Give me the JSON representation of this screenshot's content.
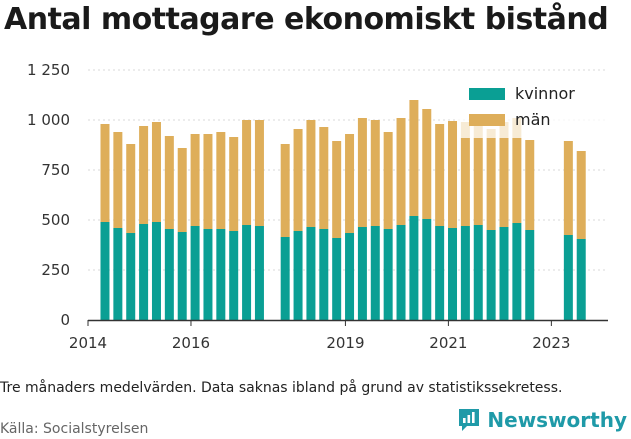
{
  "title": "Antal mottagare ekonomiskt bistånd",
  "note": "Tre månaders medelvärden. Data saknas ibland på grund av statistikssekretess.",
  "source": "Källa: Socialstyrelsen",
  "brand": "Newsworthy",
  "colors": {
    "kvinnor": "#0a9f94",
    "man": "#deae5a",
    "brand": "#1f9aa8"
  },
  "chart_data": {
    "type": "bar",
    "stacked": true,
    "ylim": [
      0,
      1250
    ],
    "xlim": [
      2014.0,
      2024.1
    ],
    "y_ticks": [
      {
        "value": 0,
        "label": "0"
      },
      {
        "value": 250,
        "label": "250"
      },
      {
        "value": 500,
        "label": "500"
      },
      {
        "value": 750,
        "label": "750"
      },
      {
        "value": 1000,
        "label": "1 000"
      },
      {
        "value": 1250,
        "label": "1 250"
      }
    ],
    "x_ticks": [
      {
        "value": 2014,
        "label": "2014"
      },
      {
        "value": 2016,
        "label": "2016"
      },
      {
        "value": 2019,
        "label": "2019"
      },
      {
        "value": 2021,
        "label": "2021"
      },
      {
        "value": 2023,
        "label": "2023"
      }
    ],
    "grid": true,
    "legend_position": "top-right",
    "series": [
      {
        "name": "kvinnor",
        "key": "kvinnor"
      },
      {
        "name": "män",
        "key": "man"
      }
    ],
    "x": [
      2014.33,
      2014.58,
      2014.83,
      2015.08,
      2015.33,
      2015.58,
      2015.83,
      2016.08,
      2016.33,
      2016.58,
      2016.83,
      2017.08,
      2017.33,
      2017.83,
      2018.08,
      2018.33,
      2018.58,
      2018.83,
      2019.08,
      2019.33,
      2019.58,
      2019.83,
      2020.08,
      2020.33,
      2020.58,
      2020.83,
      2021.08,
      2021.33,
      2021.58,
      2021.83,
      2022.08,
      2022.33,
      2022.58,
      2023.33,
      2023.58
    ],
    "kvinnor": [
      490,
      460,
      435,
      480,
      490,
      455,
      440,
      470,
      455,
      455,
      445,
      475,
      470,
      415,
      445,
      465,
      455,
      410,
      435,
      465,
      470,
      455,
      475,
      520,
      505,
      470,
      460,
      470,
      475,
      450,
      465,
      485,
      450,
      425,
      405
    ],
    "man": [
      490,
      480,
      445,
      490,
      500,
      465,
      420,
      460,
      475,
      485,
      470,
      525,
      530,
      465,
      510,
      535,
      510,
      485,
      495,
      545,
      530,
      485,
      535,
      580,
      550,
      510,
      535,
      520,
      510,
      505,
      525,
      525,
      450,
      470,
      440
    ]
  }
}
